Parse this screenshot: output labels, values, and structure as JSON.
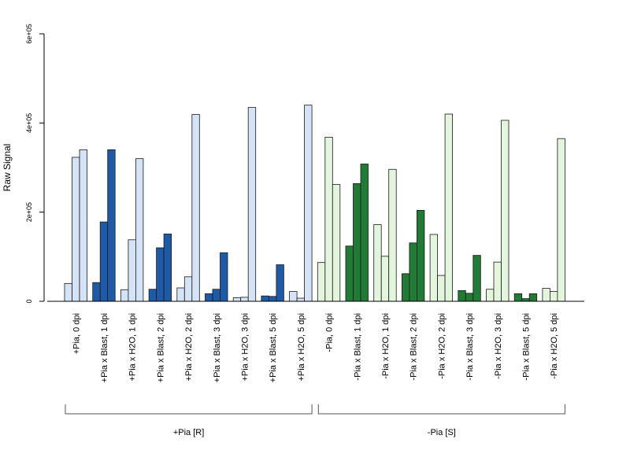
{
  "chart_data": {
    "type": "bar",
    "ylabel": "Raw Signal",
    "ylim": [
      0,
      600000
    ],
    "yticks": [
      0,
      200000,
      400000,
      600000
    ],
    "ytick_labels": [
      "0",
      "2e+05",
      "4e+05",
      "6e+05"
    ],
    "grid": false,
    "categories": [
      "+Pia, 0 dpi",
      "+Pia x Blast, 1 dpi",
      "+Pia x H2O, 1 dpi",
      "+Pia x Blast, 2 dpi",
      "+Pia x H2O, 2 dpi",
      "+Pia x Blast, 3 dpi",
      "+Pia x H2O, 3 dpi",
      "+Pia x Blast, 5 dpi",
      "+Pia x H2O, 5 dpi",
      "-Pia, 0 dpi",
      "-Pia x Blast, 1 dpi",
      "-Pia x H2O, 1 dpi",
      "-Pia x Blast, 2 dpi",
      "-Pia x H2O, 2 dpi",
      "-Pia x Blast, 3 dpi",
      "-Pia x H2O, 3 dpi",
      "-Pia x Blast, 5 dpi",
      "-Pia x H2O, 5 dpi"
    ],
    "values": [
      [
        40000,
        323000,
        340000
      ],
      [
        42000,
        178000,
        340000
      ],
      [
        26000,
        138000,
        320000
      ],
      [
        27000,
        120000,
        151000
      ],
      [
        30000,
        55000,
        419000
      ],
      [
        17000,
        27000,
        109000
      ],
      [
        8000,
        9000,
        435000
      ],
      [
        12000,
        11000,
        82000
      ],
      [
        22000,
        7000,
        440000
      ],
      [
        87000,
        368000,
        262000
      ],
      [
        124000,
        264000,
        308000
      ],
      [
        172000,
        101000,
        296000
      ],
      [
        62000,
        131000,
        204000
      ],
      [
        150000,
        58000,
        420000
      ],
      [
        24000,
        18000,
        103000
      ],
      [
        27000,
        88000,
        406000
      ],
      [
        17000,
        6000,
        17000
      ],
      [
        29000,
        22000,
        365000
      ]
    ],
    "groups": [
      {
        "label": "+Pia [R]",
        "start": 0,
        "end": 8
      },
      {
        "label": "-Pia [S]",
        "start": 9,
        "end": 17
      }
    ],
    "colors": {
      "blue_light": "#d4e3f5",
      "blue_dark": "#1f5aa6",
      "green_light": "#e3f5dc",
      "green_dark": "#217a35"
    }
  }
}
